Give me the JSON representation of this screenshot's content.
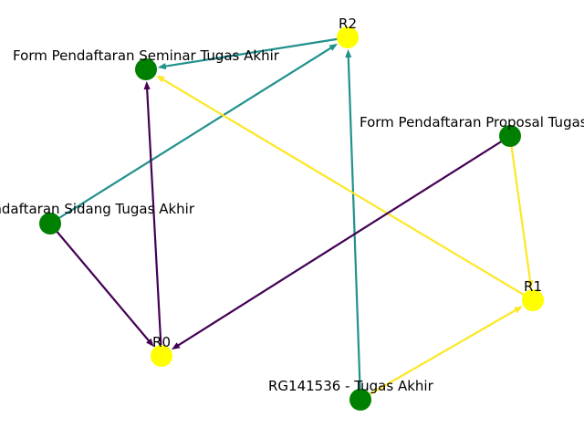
{
  "colors": {
    "entity_node": "#008000",
    "relation_node": "#ffff00",
    "edge_r0": "#440154",
    "edge_r1": "#fde725",
    "edge_r2": "#21918c"
  },
  "nodes": [
    {
      "id": "seminar",
      "label": "Form Pendaftaran Seminar Tugas Akhir",
      "kind": "entity"
    },
    {
      "id": "proposal",
      "label": "Form Pendaftaran Proposal Tugas Akhir",
      "kind": "entity"
    },
    {
      "id": "sidang",
      "label": "Form Pendaftaran Sidang Tugas Akhir",
      "kind": "entity"
    },
    {
      "id": "rg",
      "label": "RG141536 - Tugas Akhir",
      "kind": "entity"
    },
    {
      "id": "r0",
      "label": "R0",
      "kind": "relation"
    },
    {
      "id": "r1",
      "label": "R1",
      "kind": "relation"
    },
    {
      "id": "r2",
      "label": "R2",
      "kind": "relation"
    }
  ],
  "edges": [
    {
      "from": "r2",
      "to": "seminar",
      "color": "edge_r2"
    },
    {
      "from": "sidang",
      "to": "r2",
      "color": "edge_r2"
    },
    {
      "from": "rg",
      "to": "r2",
      "color": "edge_r2"
    },
    {
      "from": "r1",
      "to": "seminar",
      "color": "edge_r1"
    },
    {
      "from": "proposal",
      "to": "r1",
      "color": "edge_r1"
    },
    {
      "from": "rg",
      "to": "r1",
      "color": "edge_r1"
    },
    {
      "from": "r0",
      "to": "seminar",
      "color": "edge_r0"
    },
    {
      "from": "sidang",
      "to": "r0",
      "color": "edge_r0"
    },
    {
      "from": "proposal",
      "to": "r0",
      "color": "edge_r0"
    }
  ]
}
